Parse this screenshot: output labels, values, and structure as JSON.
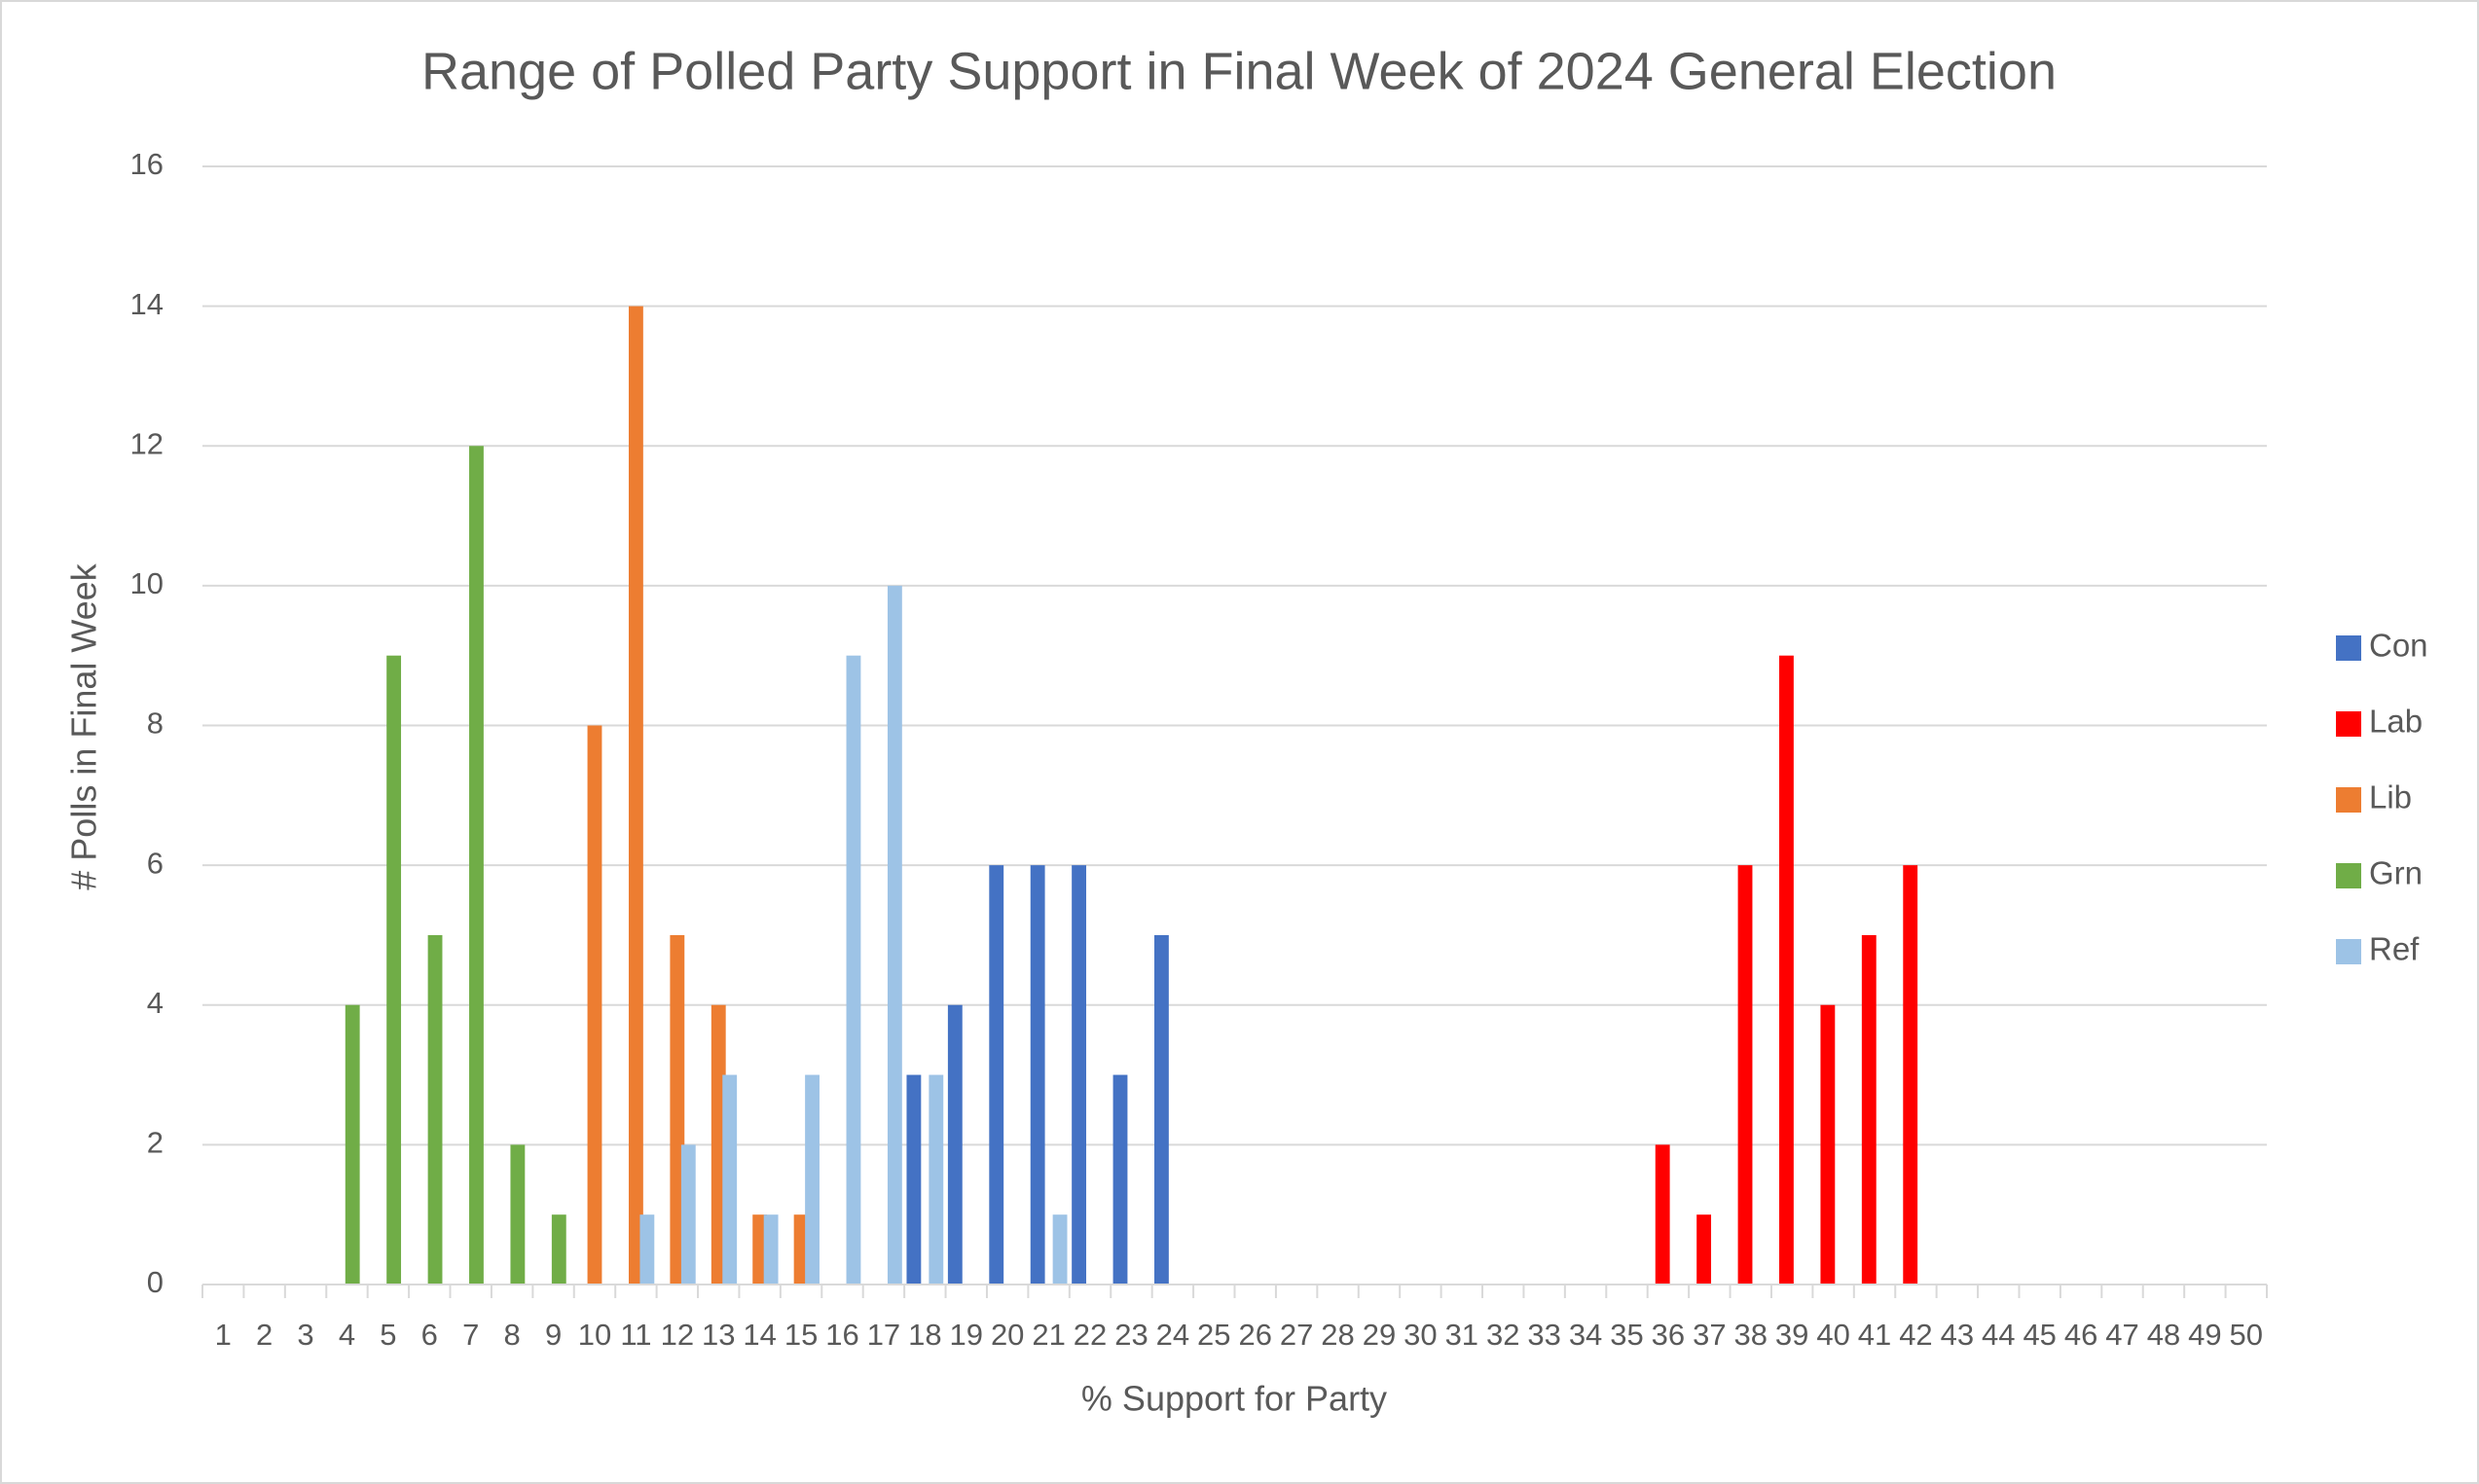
{
  "chart_data": {
    "type": "bar",
    "title": "Range of Polled Party Support in Final Week of 2024 General Election",
    "x_label": "% Support for Party",
    "y_label": "# Polls in Final Week",
    "categories": [
      1,
      2,
      3,
      4,
      5,
      6,
      7,
      8,
      9,
      10,
      11,
      12,
      13,
      14,
      15,
      16,
      17,
      18,
      19,
      20,
      21,
      22,
      23,
      24,
      25,
      26,
      27,
      28,
      29,
      30,
      31,
      32,
      33,
      34,
      35,
      36,
      37,
      38,
      39,
      40,
      41,
      42,
      43,
      44,
      45,
      46,
      47,
      48,
      49,
      50
    ],
    "series": [
      {
        "name": "Con",
        "color": "#4472c4",
        "values": [
          null,
          null,
          null,
          null,
          null,
          null,
          null,
          null,
          null,
          null,
          null,
          null,
          null,
          null,
          null,
          null,
          null,
          3,
          4,
          6,
          6,
          6,
          3,
          5,
          null,
          null,
          null,
          null,
          null,
          null,
          null,
          null,
          null,
          null,
          null,
          null,
          null,
          null,
          null,
          null,
          null,
          null,
          null,
          null,
          null,
          null,
          null,
          null,
          null,
          null
        ]
      },
      {
        "name": "Lab",
        "color": "#ff0000",
        "values": [
          null,
          null,
          null,
          null,
          null,
          null,
          null,
          null,
          null,
          null,
          null,
          null,
          null,
          null,
          null,
          null,
          null,
          null,
          null,
          null,
          null,
          null,
          null,
          null,
          null,
          null,
          null,
          null,
          null,
          null,
          null,
          null,
          null,
          null,
          null,
          2,
          1,
          6,
          9,
          4,
          5,
          6,
          null,
          null,
          null,
          null,
          null,
          null,
          null,
          null
        ]
      },
      {
        "name": "Lib",
        "color": "#ed7d31",
        "values": [
          null,
          null,
          null,
          null,
          null,
          null,
          null,
          null,
          null,
          8,
          14,
          5,
          4,
          1,
          1,
          null,
          null,
          null,
          null,
          null,
          null,
          null,
          null,
          null,
          null,
          null,
          null,
          null,
          null,
          null,
          null,
          null,
          null,
          null,
          null,
          null,
          null,
          null,
          null,
          null,
          null,
          null,
          null,
          null,
          null,
          null,
          null,
          null,
          null,
          null
        ]
      },
      {
        "name": "Grn",
        "color": "#70ad47",
        "values": [
          null,
          null,
          null,
          4,
          9,
          5,
          12,
          2,
          1,
          null,
          null,
          null,
          null,
          null,
          null,
          null,
          null,
          null,
          null,
          null,
          null,
          null,
          null,
          null,
          null,
          null,
          null,
          null,
          null,
          null,
          null,
          null,
          null,
          null,
          null,
          null,
          null,
          null,
          null,
          null,
          null,
          null,
          null,
          null,
          null,
          null,
          null,
          null,
          null,
          null
        ]
      },
      {
        "name": "Ref",
        "color": "#9dc3e6",
        "values": [
          null,
          null,
          null,
          null,
          null,
          null,
          null,
          null,
          null,
          null,
          1,
          2,
          3,
          1,
          3,
          9,
          10,
          3,
          null,
          null,
          1,
          null,
          null,
          null,
          null,
          null,
          null,
          null,
          null,
          null,
          null,
          null,
          null,
          null,
          null,
          null,
          null,
          null,
          null,
          null,
          null,
          null,
          null,
          null,
          null,
          null,
          null,
          null,
          null,
          null
        ]
      }
    ],
    "ylim": [
      0,
      16
    ],
    "yticks": [
      0,
      2,
      4,
      6,
      8,
      10,
      12,
      14,
      16
    ],
    "grid": true,
    "legend": "right"
  }
}
